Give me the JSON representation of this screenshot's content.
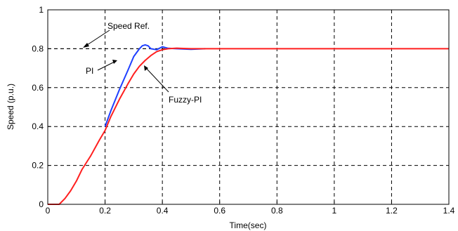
{
  "chart_data": {
    "type": "line",
    "title": "",
    "xlabel": "Time(sec)",
    "ylabel": "Speed (p.u.)",
    "xlim": [
      0,
      1.4
    ],
    "ylim": [
      0,
      1
    ],
    "grid": true,
    "x_ticks": [
      0,
      0.2,
      0.4,
      0.6,
      0.8,
      1,
      1.2,
      1.4
    ],
    "y_ticks": [
      0,
      0.2,
      0.4,
      0.6,
      0.8,
      1
    ],
    "x_tick_labels": [
      "0",
      "0.2",
      "0.4",
      "0.6",
      "0.8",
      "1",
      "1.2",
      "1.4"
    ],
    "y_tick_labels": [
      "0",
      "0.2",
      "0.4",
      "0.6",
      "0.8",
      "1"
    ],
    "series": [
      {
        "name": "Speed Ref.",
        "color": "#000000",
        "dashed": true,
        "x": [
          0,
          1.4
        ],
        "y": [
          0.8,
          0.8
        ]
      },
      {
        "name": "PI",
        "color": "#1f3fff",
        "x": [
          0.2,
          0.22,
          0.25,
          0.28,
          0.3,
          0.32,
          0.33,
          0.34,
          0.35,
          0.36,
          0.38,
          0.4,
          0.42,
          0.45,
          0.5,
          0.55
        ],
        "y": [
          0.4,
          0.48,
          0.59,
          0.69,
          0.76,
          0.8,
          0.815,
          0.82,
          0.815,
          0.8,
          0.795,
          0.81,
          0.802,
          0.8,
          0.797,
          0.8
        ]
      },
      {
        "name": "Fuzzy-PI",
        "color": "#ff1f1f",
        "x": [
          0,
          0.04,
          0.06,
          0.08,
          0.1,
          0.12,
          0.15,
          0.18,
          0.2,
          0.22,
          0.25,
          0.28,
          0.3,
          0.32,
          0.34,
          0.36,
          0.38,
          0.4,
          0.42,
          0.45,
          0.5,
          0.6,
          0.8,
          1,
          1.2,
          1.4
        ],
        "y": [
          0,
          0,
          0.03,
          0.07,
          0.12,
          0.18,
          0.25,
          0.33,
          0.38,
          0.45,
          0.54,
          0.62,
          0.67,
          0.71,
          0.74,
          0.765,
          0.785,
          0.795,
          0.8,
          0.803,
          0.8,
          0.8,
          0.8,
          0.8,
          0.8,
          0.8
        ]
      }
    ],
    "annotations": [
      {
        "text": "Speed Ref."
      },
      {
        "text": "PI"
      },
      {
        "text": "Fuzzy-PI"
      }
    ]
  }
}
